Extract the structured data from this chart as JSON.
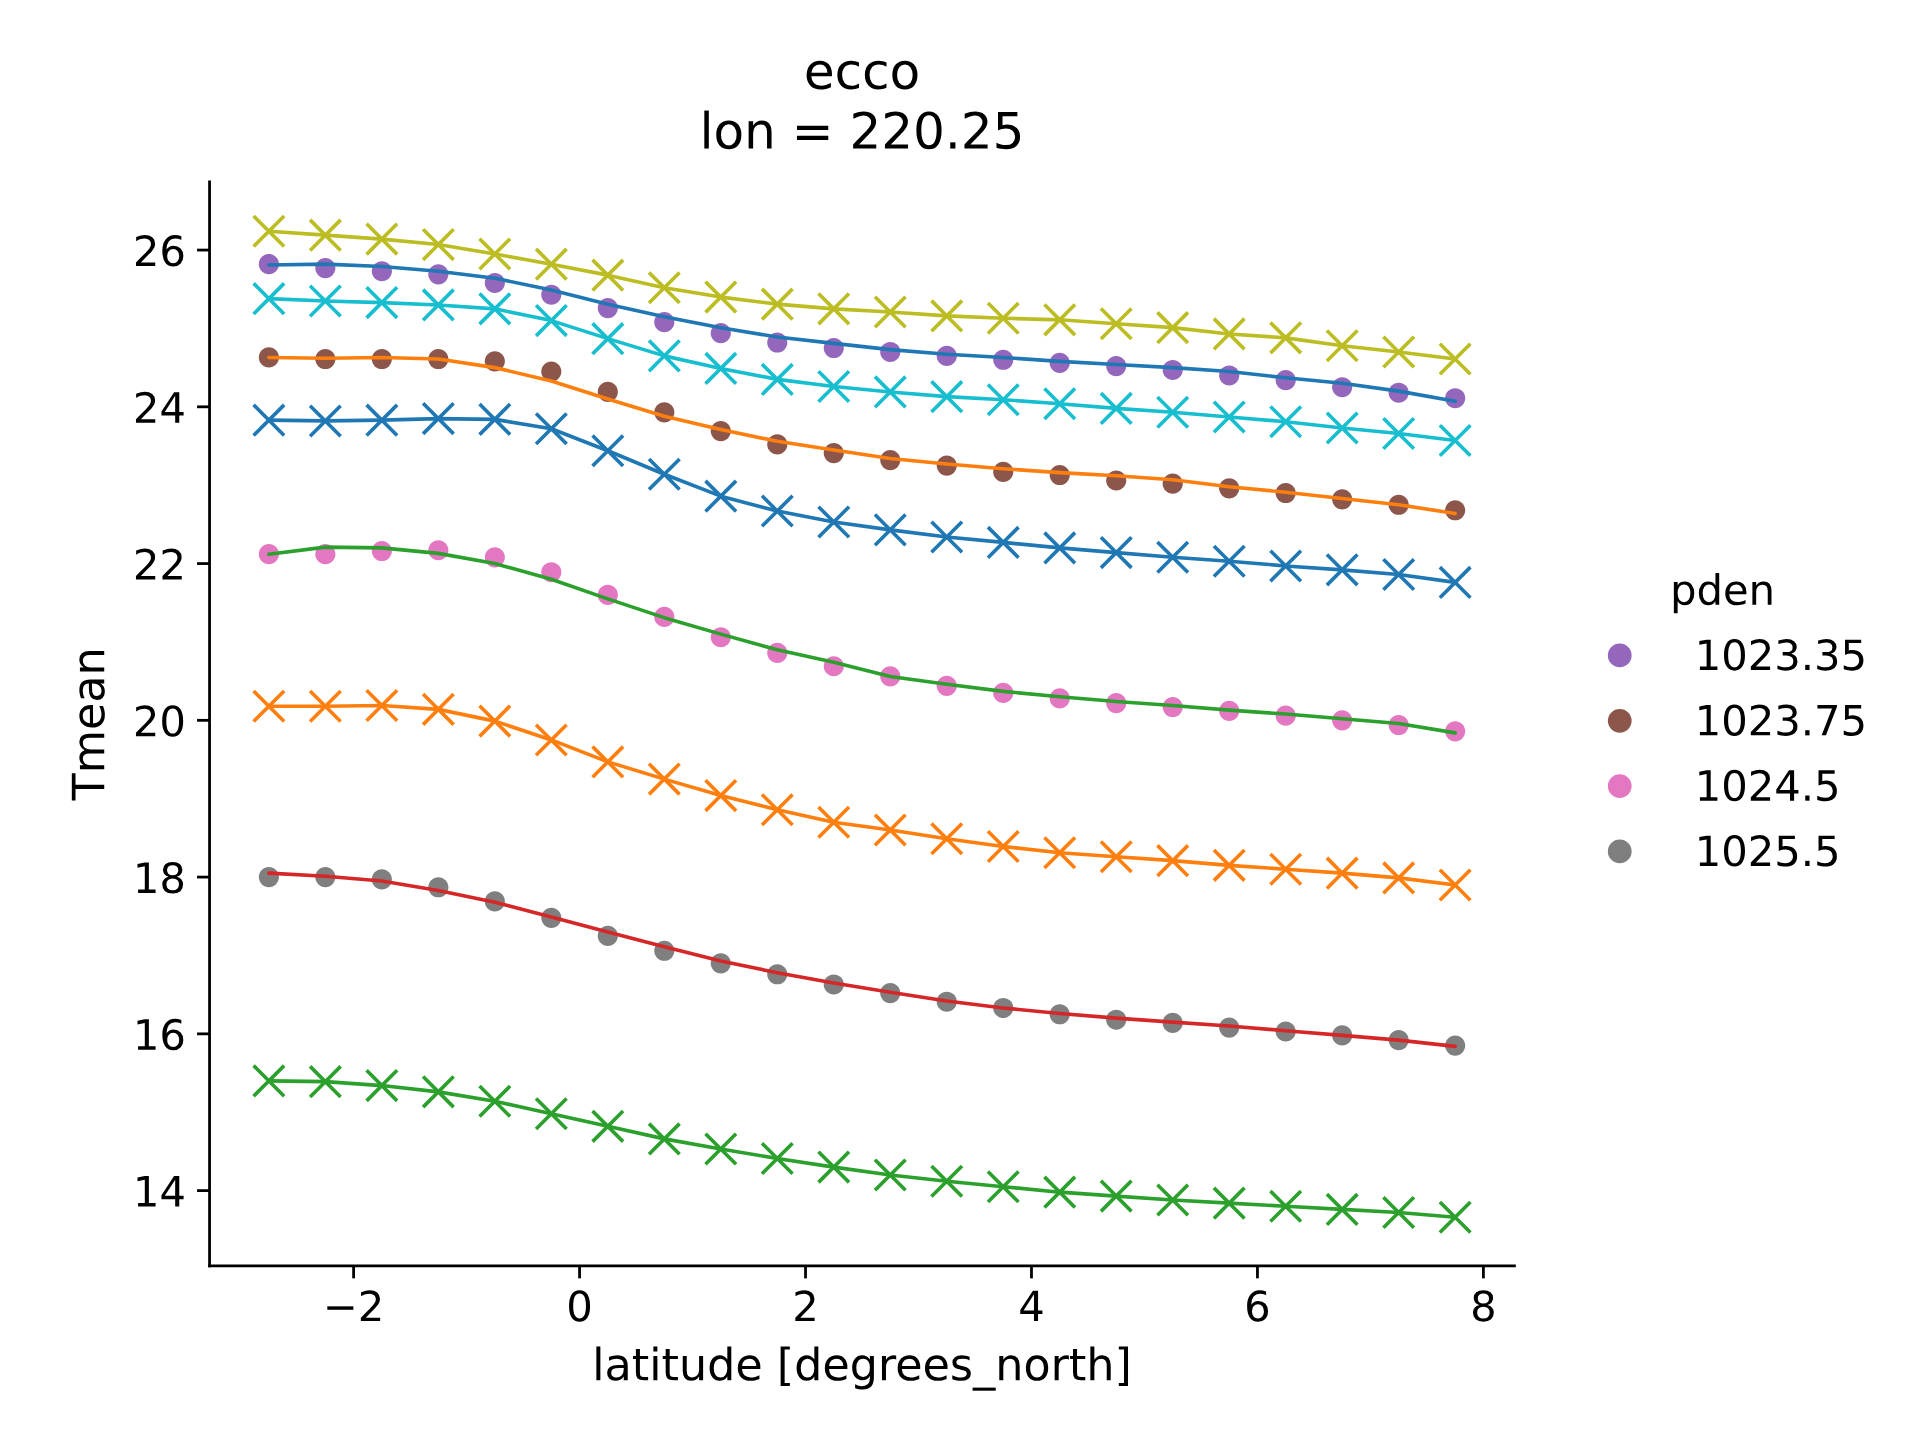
{
  "chart_data": {
    "type": "line",
    "title": "ecco\nlon = 220.25",
    "xlabel": "latitude [degrees_north]",
    "ylabel": "Tmean",
    "legend_title": "pden",
    "legend": "right",
    "x": [
      -2.75,
      -2.25,
      -1.75,
      -1.25,
      -0.75,
      -0.25,
      0.25,
      0.75,
      1.25,
      1.75,
      2.25,
      2.75,
      3.25,
      3.75,
      4.25,
      4.75,
      5.25,
      5.75,
      6.25,
      6.75,
      7.25,
      7.75
    ],
    "xlim": [
      -3.275,
      8.275
    ],
    "xticks": [
      {
        "value": -2,
        "label": "−2"
      },
      0,
      2,
      4,
      6,
      8
    ],
    "ylim": [
      13.04,
      26.87
    ],
    "yticks": [
      14,
      16,
      18,
      20,
      22,
      24,
      26
    ],
    "series": [
      {
        "color": "#bcbd22",
        "marker": "cross",
        "values": [
          26.24,
          26.19,
          26.14,
          26.07,
          25.95,
          25.82,
          25.68,
          25.52,
          25.4,
          25.31,
          25.25,
          25.21,
          25.16,
          25.13,
          25.11,
          25.06,
          25.01,
          24.93,
          24.88,
          24.78,
          24.7,
          24.61
        ]
      },
      {
        "color": "#1f77b4",
        "values": [
          25.81,
          25.82,
          25.79,
          25.73,
          25.64,
          25.49,
          25.31,
          25.15,
          25.01,
          24.89,
          24.81,
          24.73,
          24.67,
          24.63,
          24.58,
          24.54,
          24.5,
          24.45,
          24.37,
          24.3,
          24.2,
          24.07
        ]
      },
      {
        "type": "scatter",
        "name": "1023.35",
        "color": "#9467bd",
        "marker": "circle",
        "values": [
          25.82,
          25.77,
          25.73,
          25.69,
          25.58,
          25.43,
          25.26,
          25.08,
          24.94,
          24.82,
          24.75,
          24.7,
          24.65,
          24.6,
          24.56,
          24.52,
          24.47,
          24.4,
          24.34,
          24.25,
          24.18,
          24.11
        ]
      },
      {
        "color": "#17becf",
        "marker": "cross",
        "values": [
          25.38,
          25.35,
          25.33,
          25.3,
          25.25,
          25.1,
          24.87,
          24.65,
          24.49,
          24.35,
          24.26,
          24.19,
          24.13,
          24.09,
          24.04,
          23.98,
          23.93,
          23.87,
          23.81,
          23.73,
          23.66,
          23.57
        ]
      },
      {
        "color": "#ff7f0e",
        "values": [
          24.63,
          24.62,
          24.63,
          24.61,
          24.5,
          24.33,
          24.1,
          23.88,
          23.71,
          23.56,
          23.45,
          23.34,
          23.27,
          23.21,
          23.16,
          23.12,
          23.07,
          22.98,
          22.91,
          22.83,
          22.75,
          22.64
        ]
      },
      {
        "type": "scatter",
        "name": "1023.75",
        "color": "#8c564b",
        "marker": "circle",
        "values": [
          24.63,
          24.61,
          24.61,
          24.61,
          24.58,
          24.45,
          24.19,
          23.93,
          23.69,
          23.52,
          23.41,
          23.32,
          23.25,
          23.17,
          23.13,
          23.06,
          23.02,
          22.96,
          22.9,
          22.82,
          22.75,
          22.68
        ]
      },
      {
        "color": "#1f77b4",
        "marker": "cross",
        "values": [
          23.83,
          23.82,
          23.83,
          23.85,
          23.84,
          23.72,
          23.44,
          23.14,
          22.86,
          22.67,
          22.53,
          22.43,
          22.34,
          22.27,
          22.2,
          22.14,
          22.08,
          22.03,
          21.97,
          21.92,
          21.86,
          21.76
        ]
      },
      {
        "color": "#2ca02c",
        "values": [
          22.12,
          22.21,
          22.2,
          22.13,
          22.0,
          21.8,
          21.55,
          21.31,
          21.1,
          20.9,
          20.74,
          20.56,
          20.46,
          20.37,
          20.3,
          20.24,
          20.19,
          20.13,
          20.08,
          20.02,
          19.96,
          19.84
        ]
      },
      {
        "type": "scatter",
        "name": "1024.5",
        "color": "#e377c2",
        "marker": "circle",
        "values": [
          22.12,
          22.12,
          22.16,
          22.17,
          22.08,
          21.89,
          21.6,
          21.32,
          21.06,
          20.86,
          20.69,
          20.56,
          20.44,
          20.35,
          20.28,
          20.22,
          20.17,
          20.12,
          20.06,
          20.0,
          19.94,
          19.86
        ]
      },
      {
        "color": "#ff7f0e",
        "marker": "cross",
        "values": [
          20.18,
          20.18,
          20.19,
          20.14,
          19.99,
          19.75,
          19.47,
          19.25,
          19.04,
          18.86,
          18.7,
          18.6,
          18.49,
          18.39,
          18.31,
          18.26,
          18.21,
          18.15,
          18.1,
          18.05,
          17.99,
          17.9
        ]
      },
      {
        "color": "#d62728",
        "values": [
          18.05,
          18.01,
          17.95,
          17.83,
          17.68,
          17.49,
          17.3,
          17.11,
          16.93,
          16.78,
          16.65,
          16.53,
          16.42,
          16.33,
          16.26,
          16.2,
          16.15,
          16.1,
          16.04,
          15.98,
          15.92,
          15.84
        ]
      },
      {
        "type": "scatter",
        "name": "1025.5",
        "color": "#7f7f7f",
        "marker": "circle",
        "values": [
          18.0,
          18.0,
          17.97,
          17.87,
          17.69,
          17.48,
          17.25,
          17.06,
          16.9,
          16.76,
          16.63,
          16.52,
          16.41,
          16.33,
          16.25,
          16.18,
          16.14,
          16.08,
          16.03,
          15.98,
          15.92,
          15.85
        ]
      },
      {
        "color": "#2ca02c",
        "marker": "cross",
        "values": [
          15.4,
          15.39,
          15.34,
          15.26,
          15.14,
          14.98,
          14.82,
          14.66,
          14.53,
          14.41,
          14.3,
          14.2,
          14.12,
          14.05,
          13.98,
          13.93,
          13.88,
          13.84,
          13.8,
          13.76,
          13.72,
          13.66
        ]
      }
    ]
  }
}
